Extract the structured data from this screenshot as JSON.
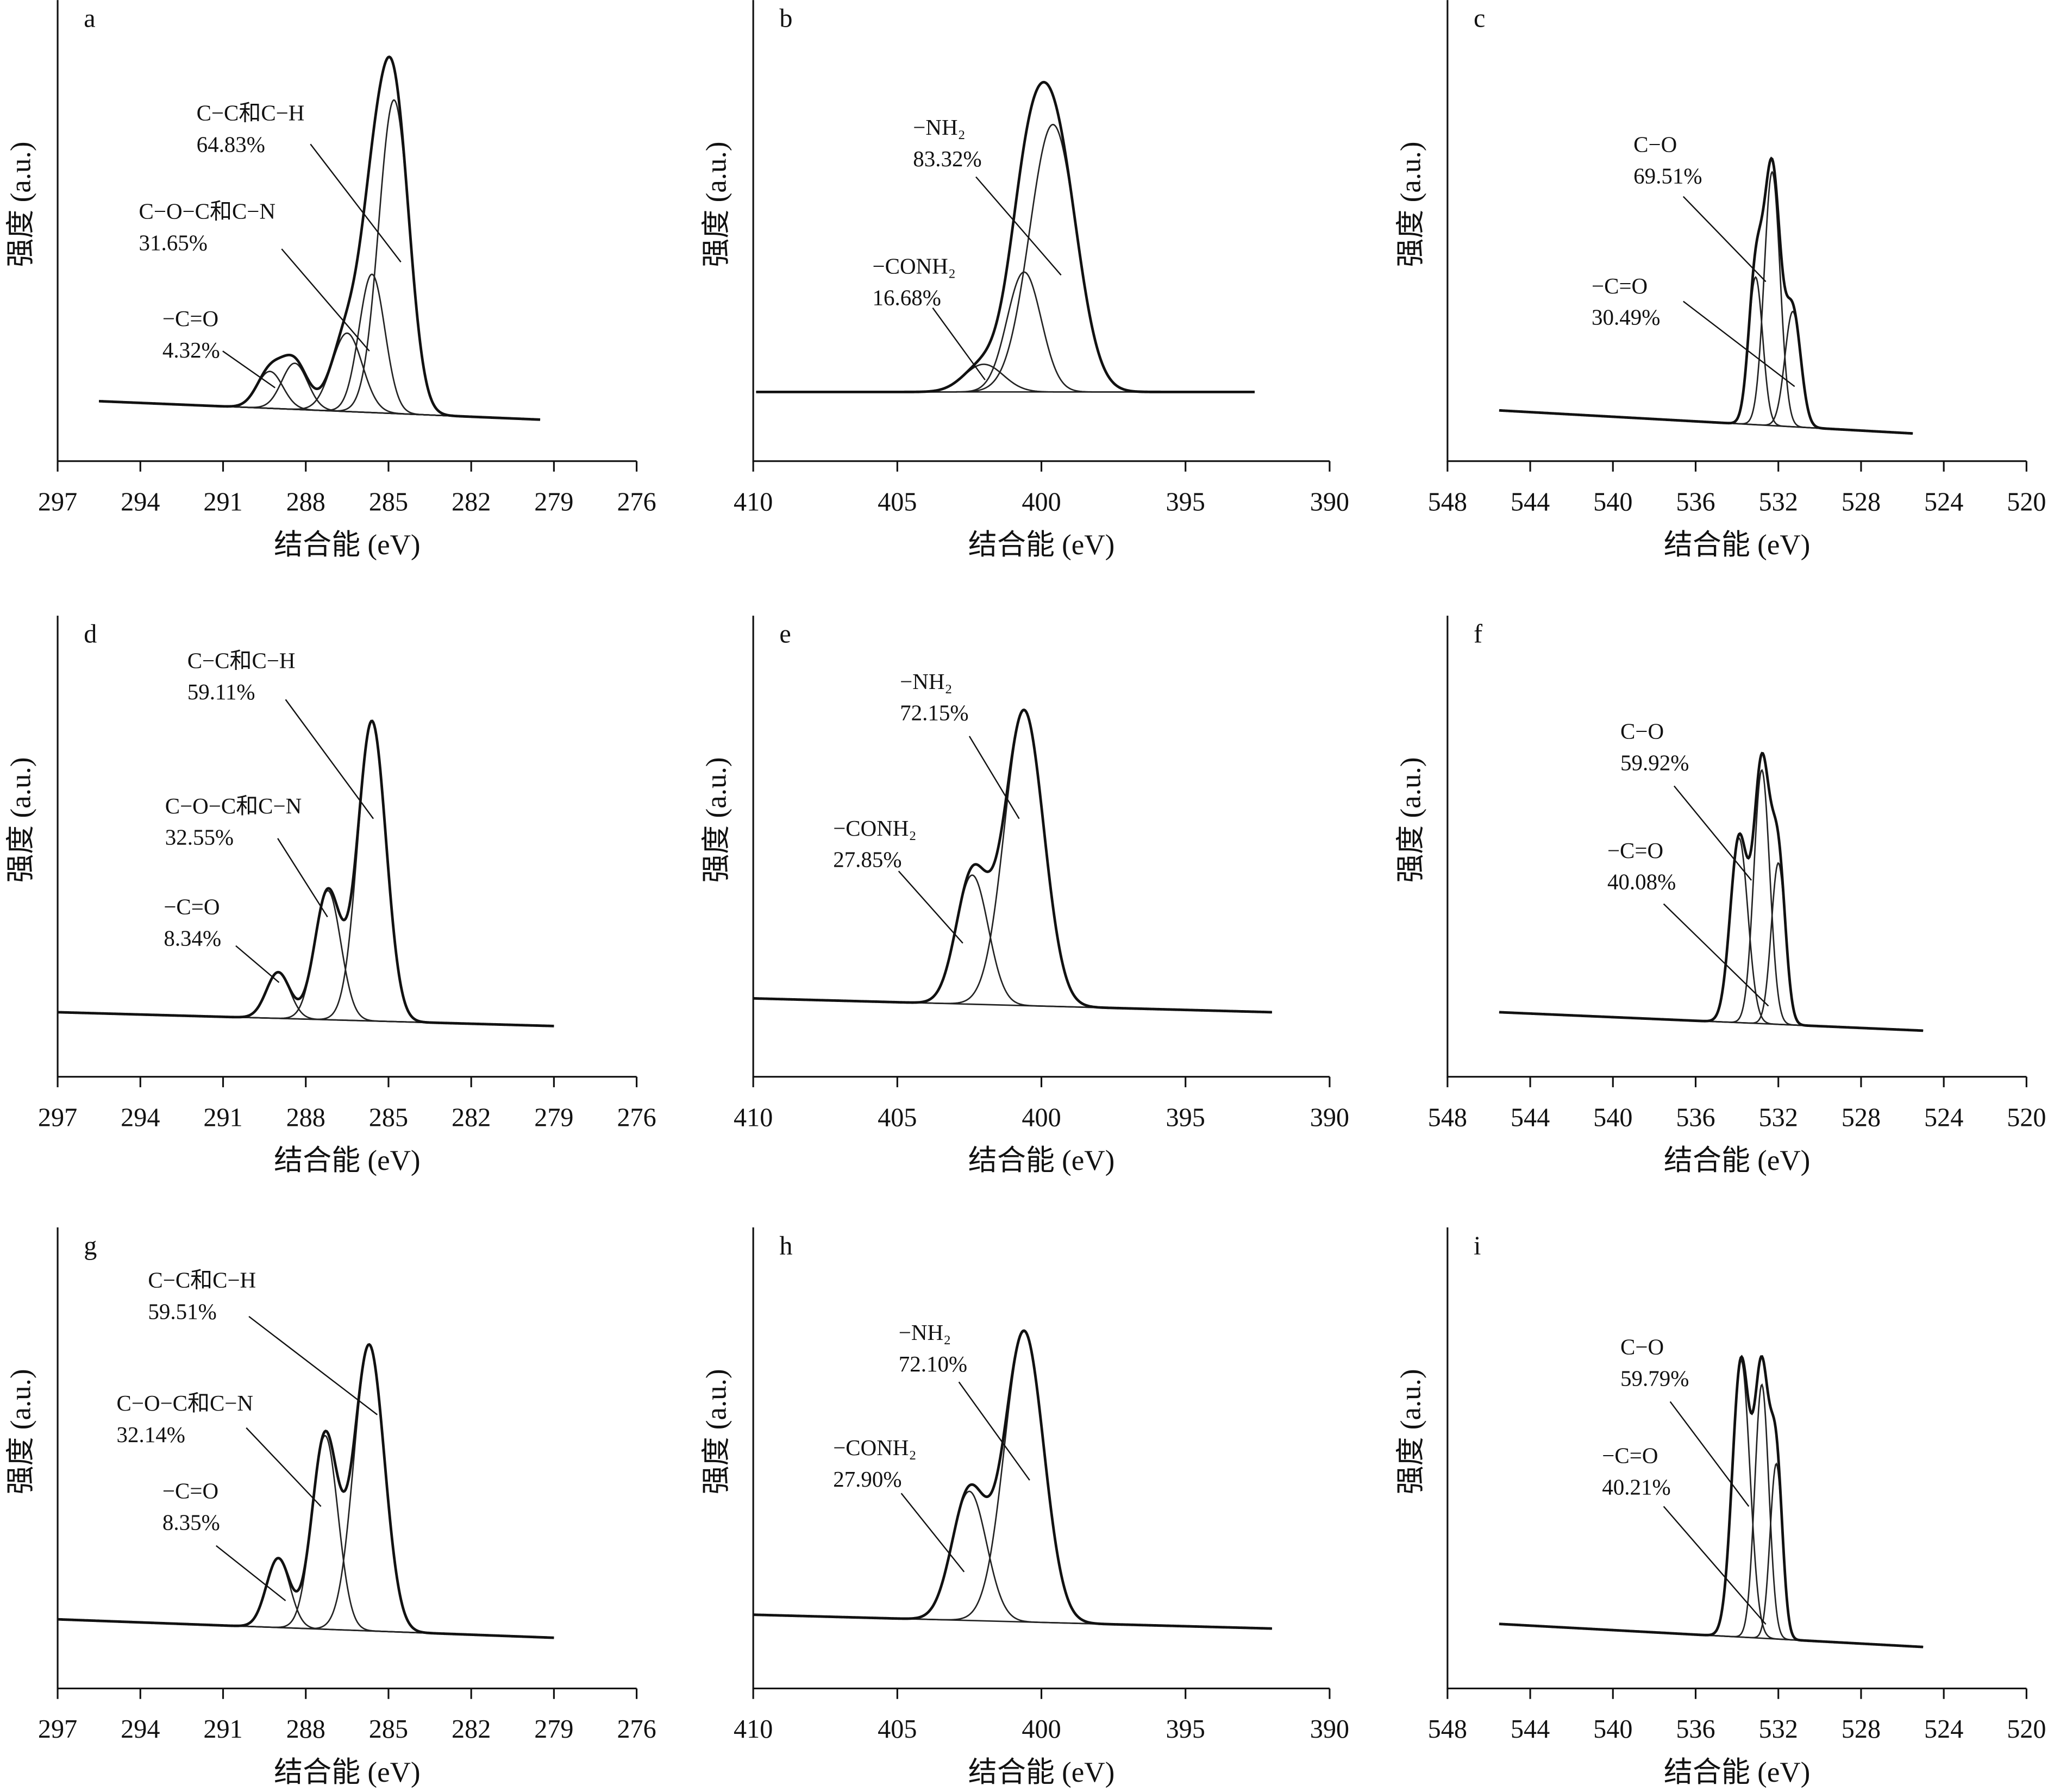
{
  "chart_data": [
    {
      "type": "line",
      "panel": "a",
      "xlabel": "结合能 (eV)",
      "ylabel": "强度 (a.u.)",
      "color": "#222",
      "xlim": [
        297,
        276
      ],
      "xticks": [
        297,
        294,
        291,
        288,
        285,
        282,
        279,
        276
      ],
      "ylim": [
        0,
        100
      ],
      "background": {
        "x": [
          295.5,
          279.5
        ],
        "values": [
          13,
          9
        ]
      },
      "peaks": [
        {
          "name": "C−C和C−H",
          "value": 64.83,
          "value_label": "64.83%",
          "center": 284.8,
          "height": 68,
          "fwhm": 1.3
        },
        {
          "name": "C−O−C和C−N",
          "value": 31.65,
          "value_label": "31.65%",
          "center": 286.5,
          "height": 17,
          "fwhm": 1.3
        },
        {
          "name": "−C=O",
          "value": 4.32,
          "value_label": "4.32%",
          "center": 289.3,
          "height": 8,
          "fwhm": 1.1
        },
        {
          "center": 285.6,
          "height": 30,
          "fwhm": 1.1
        },
        {
          "center": 288.4,
          "height": 10,
          "fwhm": 1.1
        }
      ]
    },
    {
      "type": "line",
      "panel": "b",
      "xlabel": "结合能 (eV)",
      "ylabel": "强度 (a.u.)",
      "color": "#222",
      "xlim": [
        410,
        390
      ],
      "xticks": [
        410,
        405,
        400,
        395,
        390
      ],
      "ylim": [
        0,
        100
      ],
      "background": {
        "x": [
          409.9,
          392.6
        ],
        "values": [
          15,
          15
        ]
      },
      "peaks": [
        {
          "name": "−NH₂",
          "value": 83.32,
          "value_label": "83.32%",
          "center": 399.6,
          "height": 58,
          "fwhm": 1.9
        },
        {
          "name": "−CONH₂",
          "value": 16.68,
          "value_label": "16.68%",
          "center": 402.0,
          "height": 6,
          "fwhm": 1.6
        },
        {
          "center": 400.6,
          "height": 26,
          "fwhm": 1.4
        }
      ]
    },
    {
      "type": "line",
      "panel": "c",
      "xlabel": "结合能 (eV)",
      "ylabel": "强度 (a.u.)",
      "color": "#222",
      "xlim": [
        548,
        520
      ],
      "xticks": [
        548,
        544,
        540,
        536,
        532,
        528,
        524,
        520
      ],
      "ylim": [
        0,
        100
      ],
      "background": {
        "x": [
          545.5,
          525.5
        ],
        "values": [
          11,
          6
        ]
      },
      "peaks": [
        {
          "name": "C−O",
          "value": 69.51,
          "value_label": "69.51%",
          "center": 532.3,
          "height": 55,
          "fwhm": 0.9
        },
        {
          "name": "−C=O",
          "value": 30.49,
          "value_label": "30.49%",
          "center": 531.3,
          "height": 25,
          "fwhm": 0.9
        },
        {
          "center": 533.1,
          "height": 32,
          "fwhm": 0.8
        }
      ]
    },
    {
      "type": "line",
      "panel": "d",
      "xlabel": "结合能 (eV)",
      "ylabel": "强度 (a.u.)",
      "color": "#222",
      "xlim": [
        297,
        276
      ],
      "xticks": [
        297,
        294,
        291,
        288,
        285,
        282,
        279,
        276
      ],
      "ylim": [
        0,
        100
      ],
      "background": {
        "x": [
          297,
          279
        ],
        "values": [
          14,
          11
        ]
      },
      "peaks": [
        {
          "name": "C−C和C−H",
          "value": 59.11,
          "value_label": "59.11%",
          "center": 285.6,
          "height": 65,
          "fwhm": 1.2
        },
        {
          "name": "C−O−C和C−N",
          "value": 32.55,
          "value_label": "32.55%",
          "center": 287.2,
          "height": 28,
          "fwhm": 1.1
        },
        {
          "name": "−C=O",
          "value": 8.34,
          "value_label": "8.34%",
          "center": 289.0,
          "height": 10,
          "fwhm": 1.0
        }
      ]
    },
    {
      "type": "line",
      "panel": "e",
      "xlabel": "结合能 (eV)",
      "ylabel": "强度 (a.u.)",
      "color": "#222",
      "xlim": [
        410,
        390
      ],
      "xticks": [
        410,
        405,
        400,
        395,
        390
      ],
      "ylim": [
        0,
        100
      ],
      "background": {
        "x": [
          410,
          392
        ],
        "values": [
          17,
          14
        ]
      },
      "peaks": [
        {
          "name": "−NH₂",
          "value": 72.15,
          "value_label": "72.15%",
          "center": 400.6,
          "height": 64,
          "fwhm": 1.6
        },
        {
          "name": "−CONH₂",
          "value": 27.85,
          "value_label": "27.85%",
          "center": 402.4,
          "height": 28,
          "fwhm": 1.3
        }
      ]
    },
    {
      "type": "line",
      "panel": "f",
      "xlabel": "结合能 (eV)",
      "ylabel": "强度 (a.u.)",
      "color": "#222",
      "xlim": [
        548,
        520
      ],
      "xticks": [
        548,
        544,
        540,
        536,
        532,
        528,
        524,
        520
      ],
      "ylim": [
        0,
        100
      ],
      "background": {
        "x": [
          545.5,
          525
        ],
        "values": [
          14,
          10
        ]
      },
      "peaks": [
        {
          "name": "C−O",
          "value": 59.92,
          "value_label": "59.92%",
          "center": 532.8,
          "height": 55,
          "fwhm": 0.9
        },
        {
          "name": "−C=O",
          "value": 40.08,
          "value_label": "40.08%",
          "center": 532.0,
          "height": 35,
          "fwhm": 0.8
        },
        {
          "center": 533.9,
          "height": 40,
          "fwhm": 1.0
        }
      ]
    },
    {
      "type": "line",
      "panel": "g",
      "xlabel": "结合能 (eV)",
      "ylabel": "强度 (a.u.)",
      "color": "#222",
      "xlim": [
        297,
        276
      ],
      "xticks": [
        297,
        294,
        291,
        288,
        285,
        282,
        279,
        276
      ],
      "ylim": [
        0,
        100
      ],
      "background": {
        "x": [
          297,
          279
        ],
        "values": [
          15,
          11
        ]
      },
      "peaks": [
        {
          "name": "C−C和C−H",
          "value": 59.51,
          "value_label": "59.51%",
          "center": 285.7,
          "height": 62,
          "fwhm": 1.3
        },
        {
          "name": "C−O−C和C−N",
          "value": 32.14,
          "value_label": "32.14%",
          "center": 287.3,
          "height": 42,
          "fwhm": 1.1
        },
        {
          "name": "−C=O",
          "value": 8.35,
          "value_label": "8.35%",
          "center": 289.0,
          "height": 15,
          "fwhm": 1.0
        }
      ]
    },
    {
      "type": "line",
      "panel": "h",
      "xlabel": "结合能 (eV)",
      "ylabel": "强度 (a.u.)",
      "color": "#222",
      "xlim": [
        410,
        390
      ],
      "xticks": [
        410,
        405,
        400,
        395,
        390
      ],
      "ylim": [
        0,
        100
      ],
      "background": {
        "x": [
          410,
          392
        ],
        "values": [
          16,
          13
        ]
      },
      "peaks": [
        {
          "name": "−NH₂",
          "value": 72.1,
          "value_label": "72.10%",
          "center": 400.6,
          "height": 63,
          "fwhm": 1.6
        },
        {
          "name": "−CONH₂",
          "value": 27.9,
          "value_label": "27.90%",
          "center": 402.5,
          "height": 28,
          "fwhm": 1.4
        }
      ]
    },
    {
      "type": "line",
      "panel": "i",
      "xlabel": "结合能 (eV)",
      "ylabel": "强度 (a.u.)",
      "color": "#222",
      "xlim": [
        548,
        520
      ],
      "xticks": [
        548,
        544,
        540,
        536,
        532,
        528,
        524,
        520
      ],
      "ylim": [
        0,
        100
      ],
      "background": {
        "x": [
          545.5,
          525
        ],
        "values": [
          14,
          9
        ]
      },
      "peaks": [
        {
          "name": "C−O",
          "value": 59.79,
          "value_label": "59.79%",
          "center": 532.8,
          "height": 55,
          "fwhm": 0.8
        },
        {
          "name": "−C=O",
          "value": 40.21,
          "value_label": "40.21%",
          "center": 532.1,
          "height": 38,
          "fwhm": 0.7
        },
        {
          "center": 533.8,
          "height": 60,
          "fwhm": 1.0
        }
      ]
    }
  ]
}
